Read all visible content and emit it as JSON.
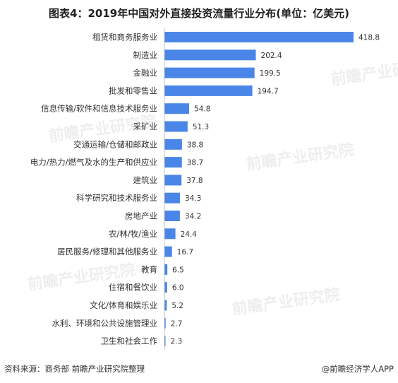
{
  "title": "图表4：2019年中国对外直接投资流量行业分布(单位：亿美元)",
  "colors": {
    "bar": "#4a86e8",
    "axis": "#bfbfbf",
    "watermark": "#000000"
  },
  "watermark": {
    "text": "前瞻产业研究院"
  },
  "chart_data": {
    "type": "bar",
    "orientation": "horizontal",
    "categories": [
      "租赁和商务服务业",
      "制造业",
      "金融业",
      "批发和零售业",
      "信息传输/软件和信息技术服务业",
      "采矿业",
      "交通运输/仓储和邮政业",
      "电力/热力/燃气及水的生产和供应业",
      "建筑业",
      "科学研究和技术服务业",
      "房地产业",
      "农/林/牧/渔业",
      "居民服务/修理和其他服务业",
      "教育",
      "住宿和餐饮业",
      "文化/体育和娱乐业",
      "水利、环境和公共设施管理业",
      "卫生和社会工作"
    ],
    "values": [
      418.8,
      202.4,
      199.5,
      194.7,
      54.8,
      51.3,
      38.8,
      38.7,
      37.8,
      34.3,
      34.2,
      24.4,
      16.7,
      6.5,
      6.0,
      5.2,
      2.7,
      2.3
    ],
    "value_labels": [
      "418.8",
      "202.4",
      "199.5",
      "194.7",
      "54.8",
      "51.3",
      "38.8",
      "38.7",
      "37.8",
      "34.3",
      "34.2",
      "24.4",
      "16.7",
      "6.5",
      "6.0",
      "5.2",
      "2.7",
      "2.3"
    ],
    "xlim": [
      0,
      418.8
    ],
    "grid": false,
    "legend": "none"
  },
  "footer": {
    "source": "资料来源：商务部 前瞻产业研究院整理",
    "brand": "@前瞻经济学人APP"
  }
}
